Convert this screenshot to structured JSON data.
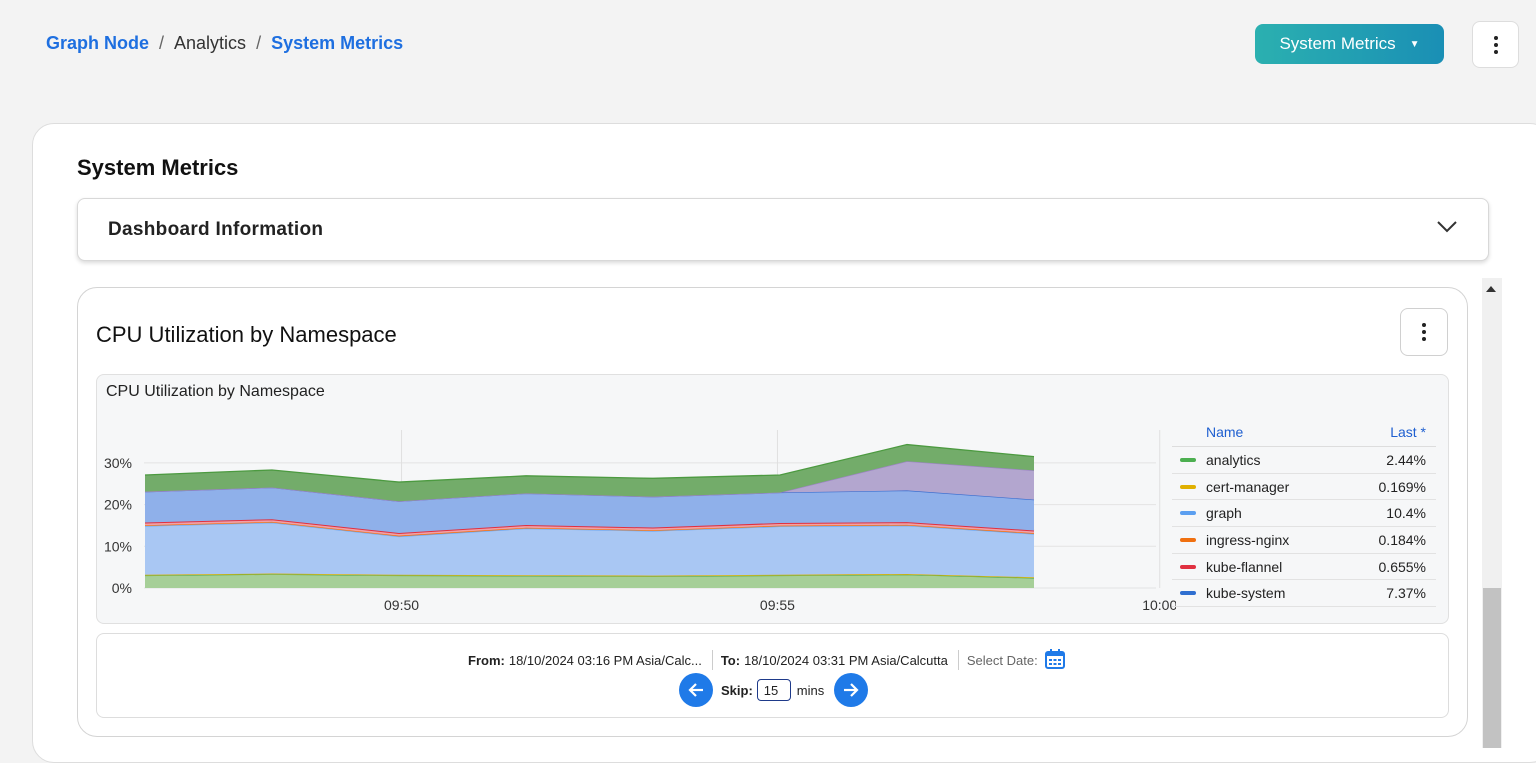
{
  "breadcrumb": {
    "root": "Graph Node",
    "mid": "Analytics",
    "current": "System Metrics",
    "separator": "/"
  },
  "header": {
    "dropdown_label": "System Metrics"
  },
  "page": {
    "title": "System Metrics"
  },
  "dashboard_info": {
    "label": "Dashboard Information"
  },
  "panel": {
    "title": "CPU Utilization by Namespace",
    "chart_title": "CPU Utilization by Namespace"
  },
  "legend": {
    "name_header": "Name",
    "last_header": "Last *",
    "items": [
      {
        "name": "analytics",
        "last": "2.44%",
        "color": "#4caf50"
      },
      {
        "name": "cert-manager",
        "last": "0.169%",
        "color": "#e0b000"
      },
      {
        "name": "graph",
        "last": "10.4%",
        "color": "#5b9ff0"
      },
      {
        "name": "ingress-nginx",
        "last": "0.184%",
        "color": "#f07010"
      },
      {
        "name": "kube-flannel",
        "last": "0.655%",
        "color": "#e03040"
      },
      {
        "name": "kube-system",
        "last": "7.37%",
        "color": "#2f6fd0"
      }
    ]
  },
  "chart_data": {
    "type": "area",
    "stacked": true,
    "title": "CPU Utilization by Namespace",
    "x": [
      "09:46",
      "09:48",
      "09:50",
      "09:52",
      "09:54",
      "09:56",
      "09:58",
      "10:00"
    ],
    "x_ticks": [
      "09:50",
      "09:55",
      "10:00"
    ],
    "y_ticks": [
      "0%",
      "10%",
      "20%",
      "30%"
    ],
    "ylim": [
      0,
      40
    ],
    "grid": true,
    "legend_placement": "right",
    "series": [
      {
        "name": "analytics",
        "values": [
          3.0,
          3.3,
          3.0,
          2.9,
          2.8,
          3.0,
          3.2,
          2.4
        ]
      },
      {
        "name": "cert-manager",
        "values": [
          0.17,
          0.17,
          0.17,
          0.17,
          0.17,
          0.17,
          0.17,
          0.17
        ]
      },
      {
        "name": "graph",
        "values": [
          11.7,
          12.2,
          9.2,
          11.2,
          10.7,
          11.6,
          11.6,
          10.4
        ]
      },
      {
        "name": "ingress-nginx",
        "values": [
          0.18,
          0.18,
          0.18,
          0.18,
          0.18,
          0.18,
          0.18,
          0.18
        ]
      },
      {
        "name": "kube-flannel",
        "values": [
          0.65,
          0.65,
          0.65,
          0.65,
          0.65,
          0.65,
          0.65,
          0.65
        ]
      },
      {
        "name": "kube-system",
        "values": [
          7.4,
          7.6,
          7.6,
          7.6,
          7.4,
          7.3,
          7.6,
          7.4
        ]
      },
      {
        "name": "",
        "values": [
          0,
          0,
          0,
          0,
          0,
          0,
          7.0,
          7.0
        ]
      },
      {
        "name": "",
        "values": [
          4.0,
          4.2,
          4.6,
          4.2,
          4.4,
          4.2,
          4.0,
          3.3
        ]
      }
    ]
  },
  "time_range": {
    "from_label": "From:",
    "from_value": "18/10/2024 03:16 PM Asia/Calc...",
    "to_label": "To:",
    "to_value": "18/10/2024 03:31 PM Asia/Calcutta",
    "select_date_label": "Select Date:",
    "skip_label": "Skip:",
    "skip_value": "15",
    "skip_unit": "mins"
  },
  "colors": {
    "accent": "#1f7ae8",
    "link": "#1e6fe0",
    "purple_layer": "#a896c8",
    "green_layer": "#6fae63"
  }
}
